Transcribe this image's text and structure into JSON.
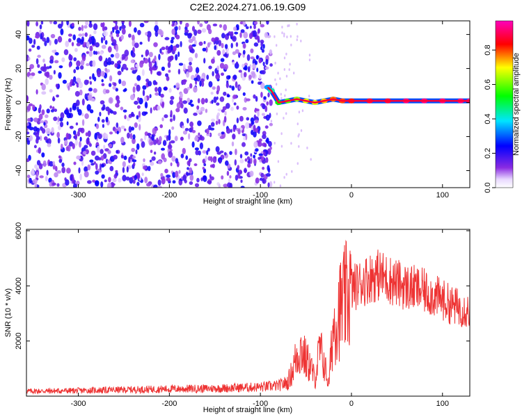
{
  "title": "C2E2.2024.271.06.19.G09",
  "chart_data": [
    {
      "type": "heatmap",
      "xlabel": "Height of straight line (km)",
      "ylabel": "Frequency (Hz)",
      "xlim": [
        -357,
        130
      ],
      "ylim": [
        -50,
        48
      ],
      "xticks": [
        -300,
        -200,
        -100,
        0,
        100
      ],
      "yticks": [
        -40,
        -20,
        0,
        20,
        40
      ],
      "grid": false,
      "colorbar": {
        "label": "Normalized spectral amplitude",
        "range": [
          0.0,
          0.97
        ],
        "ticks": [
          0.0,
          0.2,
          0.4,
          0.6,
          0.8
        ],
        "colormap": "rainbow: white → violet → blue → cyan → green → yellow → red → magenta"
      },
      "noise_region": {
        "x_range": [
          -357,
          -88
        ],
        "y_range": [
          -50,
          48
        ],
        "amplitude_range": [
          0.05,
          0.25
        ]
      },
      "signal_line": {
        "x": [
          -92,
          -88,
          -80,
          -70,
          -60,
          -50,
          -40,
          -30,
          -20,
          -10,
          0,
          20,
          40,
          60,
          80,
          100,
          120,
          130
        ],
        "frequency": [
          9,
          7,
          0,
          1,
          2,
          1,
          0,
          1,
          2,
          1,
          1,
          1,
          1,
          1,
          1,
          1,
          1,
          1
        ],
        "amplitude": [
          0.35,
          0.45,
          0.55,
          0.6,
          0.65,
          0.7,
          0.7,
          0.75,
          0.8,
          0.82,
          0.85,
          0.9,
          0.9,
          0.95,
          0.95,
          0.95,
          0.95,
          0.95
        ]
      }
    },
    {
      "type": "line",
      "xlabel": "Height of straight line (km)",
      "ylabel": "SNR (10 * v/v)",
      "xlim": [
        -357,
        130
      ],
      "ylim": [
        0,
        6050
      ],
      "xticks": [
        -300,
        -200,
        -100,
        0,
        100
      ],
      "yticks": [
        2000,
        4000,
        6000
      ],
      "grid": false,
      "line_color": "#ee3333",
      "series": [
        {
          "x": [
            -357,
            -300,
            -250,
            -200,
            -150,
            -100,
            -80,
            -70,
            -65,
            -60,
            -55,
            -50,
            -45,
            -40,
            -35,
            -30,
            -25,
            -20,
            -15,
            -10,
            -5,
            0,
            10,
            20,
            30,
            40,
            50,
            60,
            70,
            80,
            90,
            100,
            110,
            120,
            130
          ],
          "values": [
            180,
            200,
            230,
            260,
            280,
            330,
            380,
            500,
            900,
            1500,
            1700,
            1300,
            1100,
            600,
            1700,
            1200,
            400,
            2500,
            3000,
            3300,
            3600,
            3900,
            4100,
            4300,
            4400,
            4250,
            4100,
            3950,
            3900,
            3800,
            3650,
            3500,
            3300,
            3200,
            3100
          ]
        }
      ]
    }
  ]
}
